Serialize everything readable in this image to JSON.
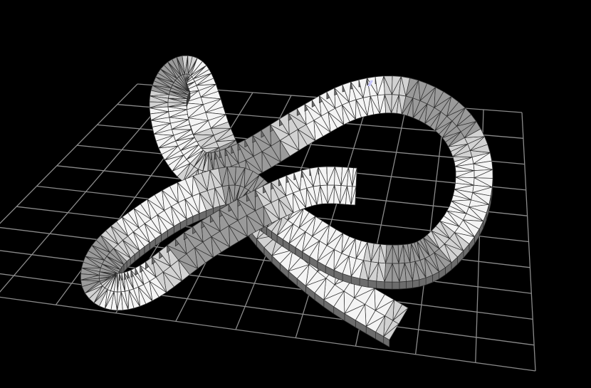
{
  "scene": {
    "background_color": "#000000",
    "grid_color": "#8a8a8a",
    "mesh_edge_color": "#2e2e2e",
    "surface_colors": {
      "lit": "#f4f4f4",
      "mid": "#d2d2d2",
      "shade": "#9a9a9a",
      "dark": "#6c6c6c"
    },
    "marker_color": "#c8c8ff",
    "grid_divisions": 10,
    "object": "triangulated-trefoil-knot-ribbon"
  }
}
